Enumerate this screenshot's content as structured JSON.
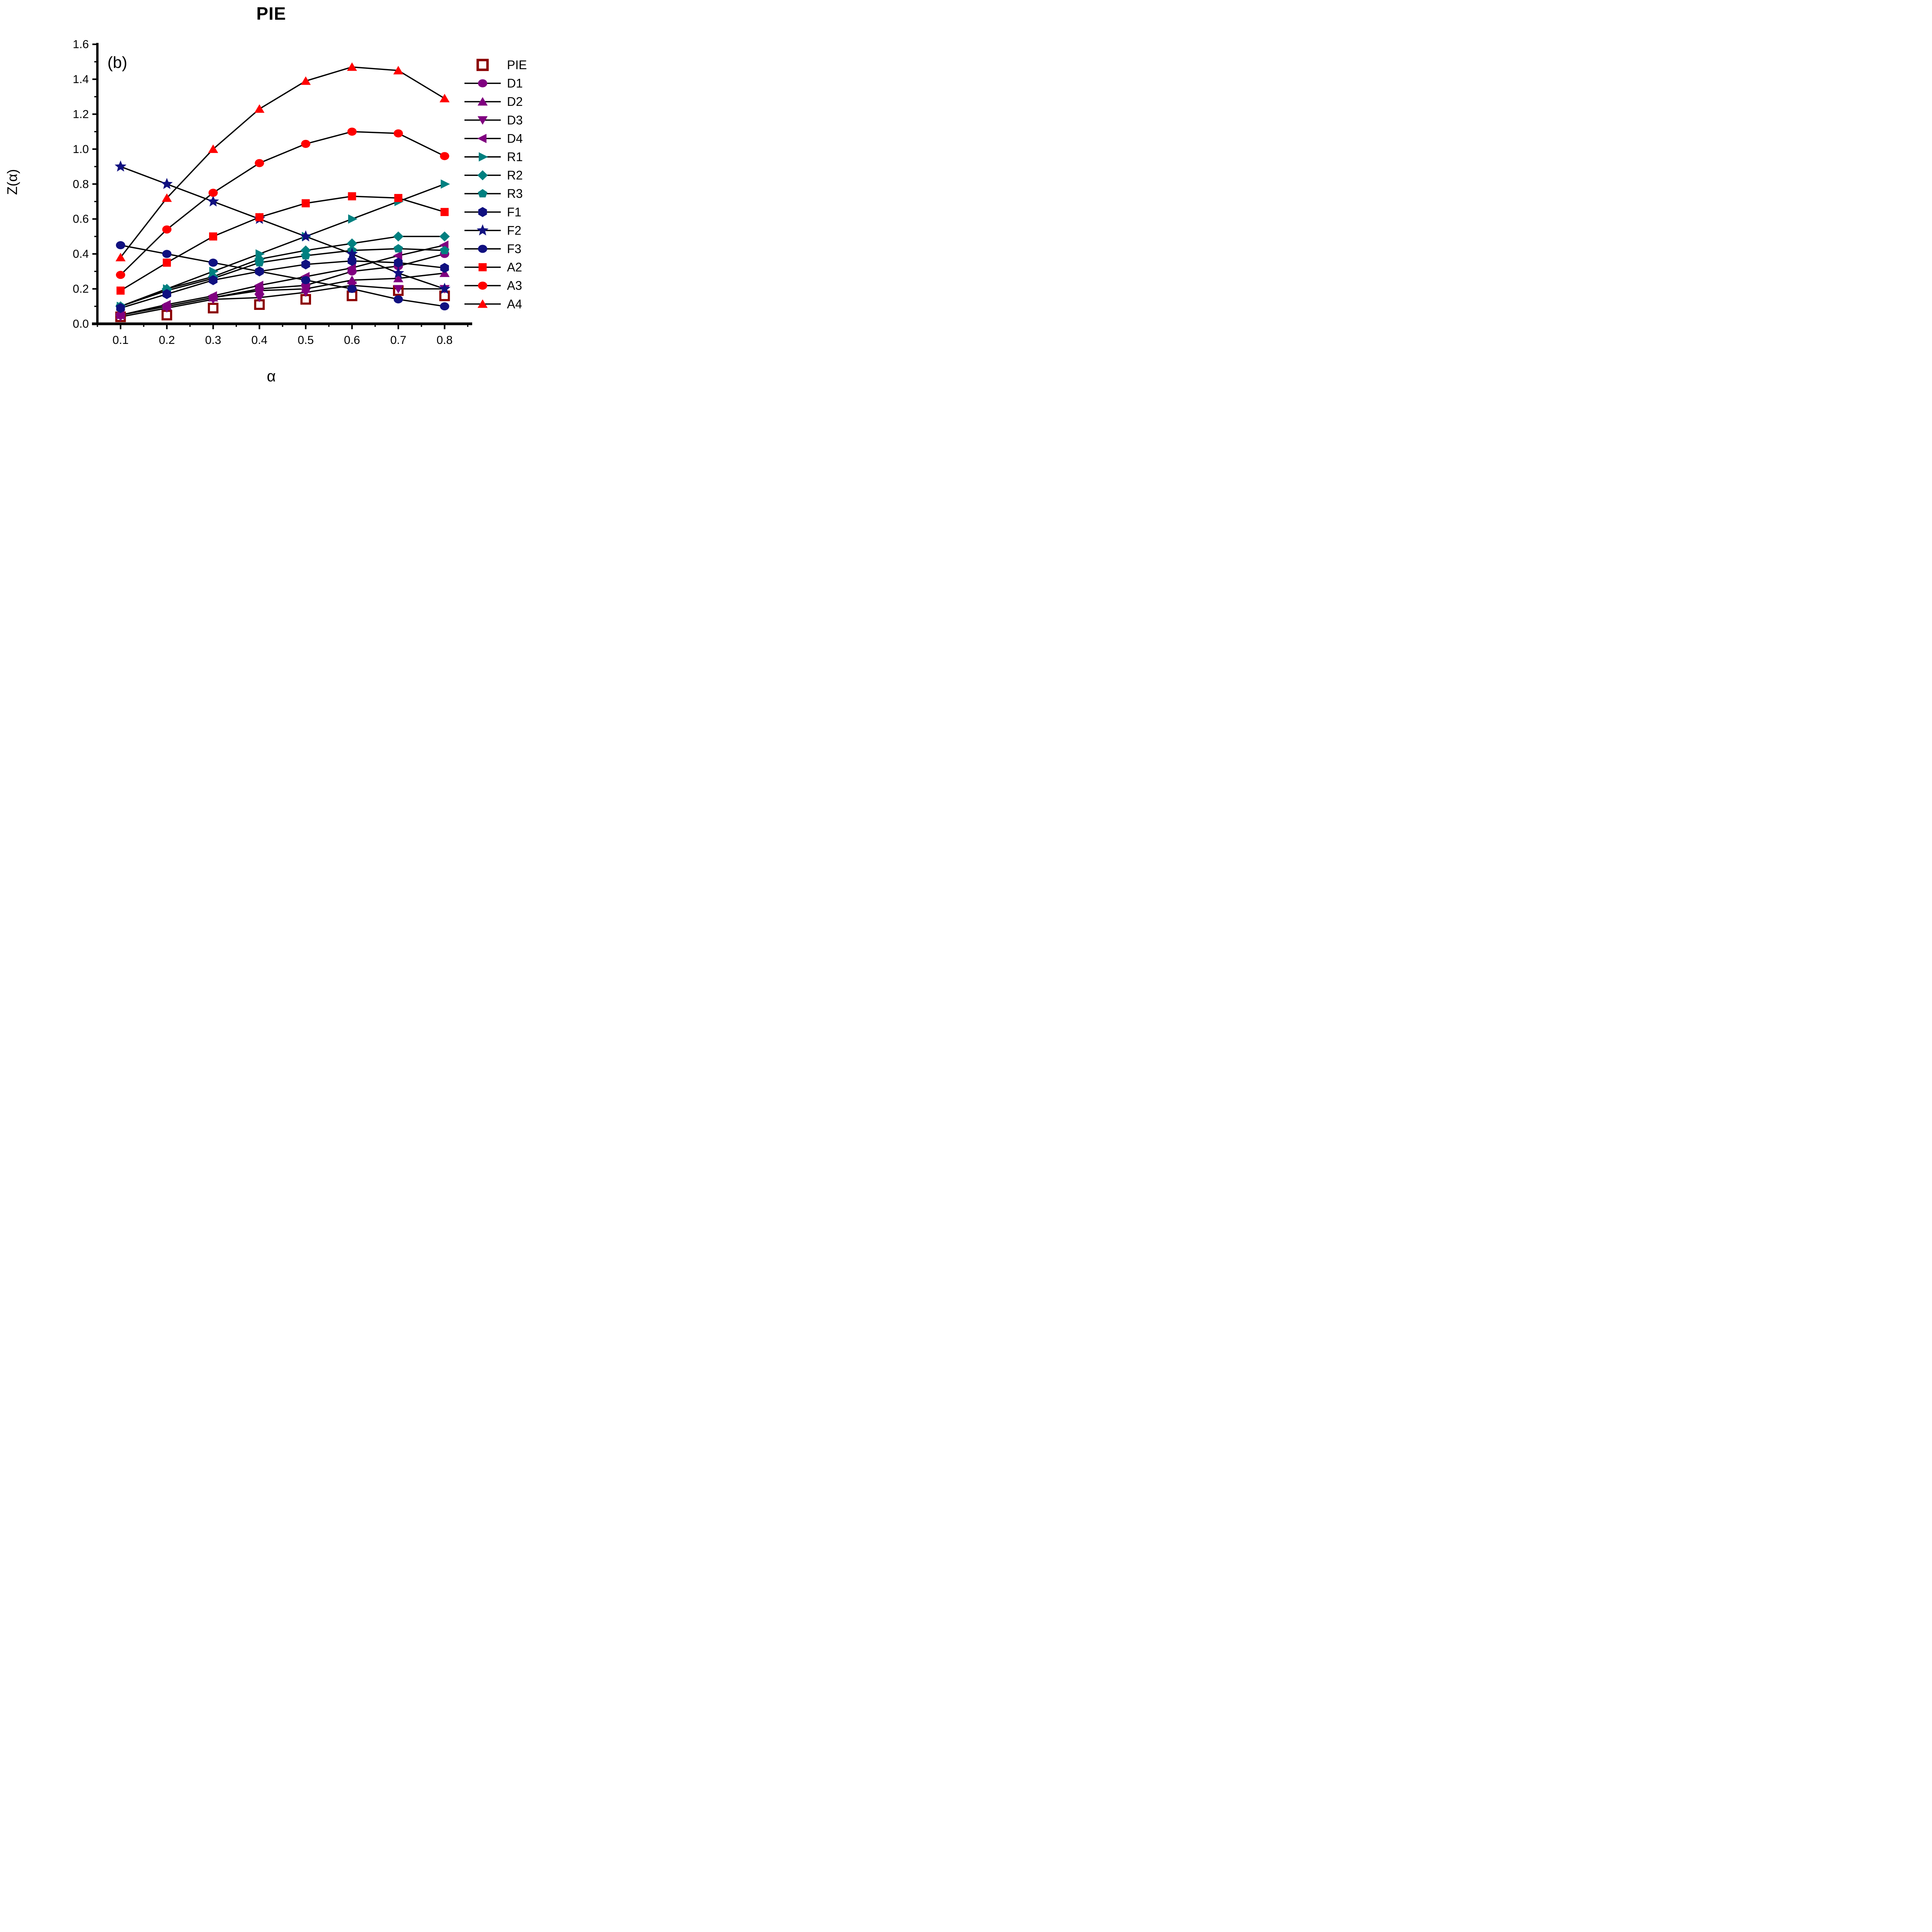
{
  "chart_data": {
    "type": "line",
    "title": "PIE",
    "panel_label": "(b)",
    "xlabel": "α",
    "ylabel": "Z(α)",
    "xlim": [
      0.05,
      0.86
    ],
    "ylim": [
      0.0,
      1.6
    ],
    "grid": false,
    "legend_position": "right-outside",
    "x": [
      0.1,
      0.2,
      0.3,
      0.4,
      0.5,
      0.6,
      0.7,
      0.8
    ],
    "x_tick_labels": [
      "0.1",
      "0.2",
      "0.3",
      "0.4",
      "0.5",
      "0.6",
      "0.7",
      "0.8"
    ],
    "y_ticks": [
      0.0,
      0.2,
      0.4,
      0.6,
      0.8,
      1.0,
      1.2,
      1.4,
      1.6
    ],
    "y_tick_labels": [
      "0.0",
      "0.2",
      "0.4",
      "0.6",
      "0.8",
      "1.0",
      "1.2",
      "1.4",
      "1.6"
    ],
    "line_color": "#000000",
    "series": [
      {
        "name": "PIE",
        "color": "#8B0000",
        "marker": "square-open",
        "line": false,
        "values": [
          0.04,
          0.05,
          0.09,
          0.11,
          0.14,
          0.16,
          0.19,
          0.16
        ]
      },
      {
        "name": "D1",
        "color": "#800080",
        "marker": "circle",
        "line": true,
        "values": [
          0.05,
          0.1,
          0.15,
          0.2,
          0.22,
          0.3,
          0.33,
          0.4
        ]
      },
      {
        "name": "D2",
        "color": "#800080",
        "marker": "triangle-up",
        "line": true,
        "values": [
          0.05,
          0.1,
          0.15,
          0.19,
          0.2,
          0.25,
          0.26,
          0.29
        ]
      },
      {
        "name": "D3",
        "color": "#800080",
        "marker": "triangle-down",
        "line": true,
        "values": [
          0.04,
          0.09,
          0.14,
          0.15,
          0.18,
          0.22,
          0.2,
          0.2
        ]
      },
      {
        "name": "D4",
        "color": "#800080",
        "marker": "triangle-left",
        "line": true,
        "values": [
          0.05,
          0.11,
          0.16,
          0.22,
          0.27,
          0.32,
          0.39,
          0.45
        ]
      },
      {
        "name": "R1",
        "color": "#008080",
        "marker": "triangle-right",
        "line": true,
        "values": [
          0.1,
          0.2,
          0.3,
          0.4,
          0.5,
          0.6,
          0.7,
          0.8
        ]
      },
      {
        "name": "R2",
        "color": "#008080",
        "marker": "diamond",
        "line": true,
        "values": [
          0.1,
          0.2,
          0.27,
          0.37,
          0.42,
          0.46,
          0.5,
          0.5
        ]
      },
      {
        "name": "R3",
        "color": "#008080",
        "marker": "pentagon",
        "line": true,
        "values": [
          0.1,
          0.19,
          0.26,
          0.35,
          0.39,
          0.42,
          0.43,
          0.42
        ]
      },
      {
        "name": "F1",
        "color": "#101080",
        "marker": "hexagon",
        "line": true,
        "values": [
          0.09,
          0.17,
          0.25,
          0.3,
          0.34,
          0.36,
          0.35,
          0.32
        ]
      },
      {
        "name": "F2",
        "color": "#101080",
        "marker": "star",
        "line": true,
        "values": [
          0.9,
          0.8,
          0.7,
          0.6,
          0.5,
          0.4,
          0.29,
          0.2
        ]
      },
      {
        "name": "F3",
        "color": "#101080",
        "marker": "circle",
        "line": true,
        "values": [
          0.45,
          0.4,
          0.35,
          0.3,
          0.25,
          0.2,
          0.14,
          0.1
        ]
      },
      {
        "name": "A2",
        "color": "#FF0000",
        "marker": "square",
        "line": true,
        "values": [
          0.19,
          0.35,
          0.5,
          0.61,
          0.69,
          0.73,
          0.72,
          0.64
        ]
      },
      {
        "name": "A3",
        "color": "#FF0000",
        "marker": "circle",
        "line": true,
        "values": [
          0.28,
          0.54,
          0.75,
          0.92,
          1.03,
          1.1,
          1.09,
          0.96
        ]
      },
      {
        "name": "A4",
        "color": "#FF0000",
        "marker": "triangle-up",
        "line": true,
        "values": [
          0.38,
          0.72,
          1.0,
          1.23,
          1.39,
          1.47,
          1.45,
          1.29
        ]
      }
    ]
  },
  "colors": {
    "background": "#FFFFFF",
    "axis": "#000000",
    "connector": "#000000",
    "maroon": "#8B0000",
    "purple": "#800080",
    "teal": "#008080",
    "navy": "#101080",
    "red": "#FF0000"
  }
}
